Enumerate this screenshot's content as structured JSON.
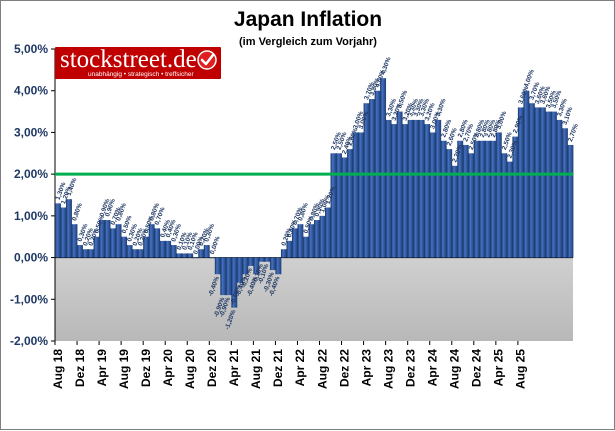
{
  "chart_data": {
    "type": "bar",
    "title": "Japan Inflation",
    "subtitle": "(im Vergleich zum Vorjahr)",
    "xlabel": "",
    "ylabel": "",
    "ylim": [
      -2,
      5
    ],
    "yticks": [
      "5,00%",
      "4,00%",
      "3,00%",
      "2,00%",
      "1,00%",
      "0,00%",
      "-1,00%",
      "-2,00%"
    ],
    "x_tick_labels": [
      "Aug 18",
      "Dez 18",
      "Apr 19",
      "Aug 19",
      "Dez 19",
      "Apr 20",
      "Aug 20",
      "Dez 20",
      "Apr 21",
      "Aug 21",
      "Dez 21",
      "Apr 22",
      "Aug 22",
      "Dez 22",
      "Apr 23",
      "Aug 23",
      "Dez 23",
      "Apr 24",
      "Aug 24",
      "Dez 24",
      "Apr 25",
      "Aug 25"
    ],
    "target_line": {
      "value": 2.0,
      "color": "#00b050"
    },
    "bar_color": "#2e5597",
    "positive_area_color": "#ffffff",
    "negative_area_color": "#c0c0c0",
    "values": [
      1.3,
      1.2,
      1.4,
      0.8,
      0.3,
      0.2,
      0.2,
      0.5,
      0.9,
      0.9,
      0.7,
      0.8,
      0.5,
      0.3,
      0.2,
      0.2,
      0.5,
      0.8,
      0.7,
      0.4,
      0.4,
      0.3,
      0.1,
      0.1,
      0.1,
      0.0,
      0.2,
      0.3,
      0.0,
      -0.4,
      -0.9,
      -0.9,
      -1.2,
      -0.6,
      -0.4,
      -0.2,
      -0.4,
      -0.1,
      -0.1,
      -0.3,
      -0.4,
      0.2,
      0.4,
      0.7,
      0.8,
      0.5,
      0.8,
      0.9,
      1.0,
      1.2,
      2.5,
      2.5,
      2.4,
      2.6,
      3.0,
      3.0,
      3.7,
      3.8,
      4.0,
      4.3,
      3.3,
      3.2,
      3.5,
      3.2,
      3.3,
      3.3,
      3.3,
      3.2,
      3.0,
      3.3,
      2.8,
      2.6,
      2.2,
      2.8,
      2.7,
      2.5,
      2.8,
      2.8,
      2.8,
      2.8,
      3.0,
      2.5,
      2.3,
      2.9,
      3.6,
      4.0,
      3.7,
      3.6,
      3.6,
      3.5,
      3.5,
      3.3,
      3.1,
      2.7
    ],
    "data_labels": [
      "1,30%",
      "1,20%",
      "1,40%",
      "0,80%",
      "0,30%",
      "0,20%",
      "0,20%",
      "0,50%",
      "0,90%",
      "0,90%",
      "0,70%",
      "0,80%",
      "0,50%",
      "0,30%",
      "0,20%",
      "0,20%",
      "0,50%",
      "0,80%",
      "0,70%",
      "0,40%",
      "0,40%",
      "0,30%",
      "0,10%",
      "0,10%",
      "0,10%",
      "0,00%",
      "0,20%",
      "0,30%",
      "0,00%",
      "-0,40%",
      "-0,90%",
      "-0,90%",
      "-1,20%",
      "-0,60%",
      "-0,40%",
      "-0,20%",
      "-0,40%",
      "-0,10%",
      "-0,10%",
      "-0,30%",
      "-0,40%",
      "0,20%",
      "0,40%",
      "0,70%",
      "0,80%",
      "0,50%",
      "0,80%",
      "0,90%",
      "1,00%",
      "1,20%",
      "2,50%",
      "2,50%",
      "2,40%",
      "2,60%",
      "3,00%",
      "3,00%",
      "3,70%",
      "3,80%",
      "4,00%",
      "4,30%",
      "3,30%",
      "3,20%",
      "3,50%",
      "3,20%",
      "3,30%",
      "3,30%",
      "3,30%",
      "3,20%",
      "3,00%",
      "3,30%",
      "2,80%",
      "2,60%",
      "2,20%",
      "2,80%",
      "2,70%",
      "2,50%",
      "2,80%",
      "2,80%",
      "2,80%",
      "2,80%",
      "3,00%",
      "2,50%",
      "2,30%",
      "2,90%",
      "3,60%",
      "4,00%",
      "3,70%",
      "3,60%",
      "3,60%",
      "3,50%",
      "3,50%",
      "3,30%",
      "3,10%",
      "2,70%"
    ]
  },
  "logo": {
    "text": "stockstreet.de",
    "tagline": "unabhängig • strategisch • treffsicher",
    "bg_color": "#c00000",
    "check_color": "#e02020"
  }
}
